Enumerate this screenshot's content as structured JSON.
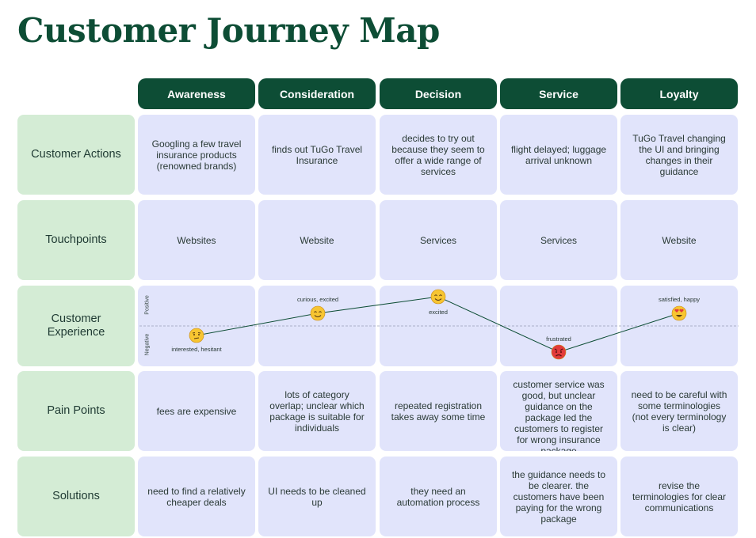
{
  "title": "Customer Journey Map",
  "stages": [
    "Awareness",
    "Consideration",
    "Decision",
    "Service",
    "Loyalty"
  ],
  "rows": {
    "actions": {
      "label": "Customer Actions",
      "cells": [
        "Googling a few travel insurance products (renowned brands)",
        "finds out TuGo Travel Insurance",
        "decides to try out because they seem to offer a wide range of services",
        "flight delayed; luggage arrival unknown",
        "TuGo Travel changing the UI and bringing changes in their guidance"
      ]
    },
    "touchpoints": {
      "label": "Touchpoints",
      "cells": [
        "Websites",
        "Website",
        "Services",
        "Services",
        "Website"
      ]
    },
    "experience": {
      "label": "Customer Experience",
      "positive_label": "Positive",
      "negative_label": "Negative",
      "points": [
        {
          "label": "interested, hesitant",
          "emotion": "hesitant",
          "icon": "thinking-face-icon"
        },
        {
          "label": "curious, excited",
          "emotion": "curious",
          "icon": "smiling-face-icon"
        },
        {
          "label": "excited",
          "emotion": "excited",
          "icon": "smiling-face-icon"
        },
        {
          "label": "frustrated",
          "emotion": "frustrated",
          "icon": "angry-face-icon"
        },
        {
          "label": "satisfied, happy",
          "emotion": "happy",
          "icon": "heart-eyes-face-icon"
        }
      ]
    },
    "pain_points": {
      "label": "Pain Points",
      "cells": [
        "fees are expensive",
        "lots of category overlap; unclear which package is suitable for individuals",
        "repeated registration takes away some time",
        "customer service was good, but unclear guidance on the package led the customers to register for wrong insurance package",
        "need to be careful with some terminologies (not every terminology is clear)"
      ]
    },
    "solutions": {
      "label": "Solutions",
      "cells": [
        "need to find a relatively cheaper deals",
        "UI needs to be cleaned up",
        "they need an automation process",
        "the guidance needs to be clearer. the customers have been paying for the wrong package",
        "revise the terminologies for clear communications"
      ]
    }
  },
  "colors": {
    "title": "#0d4d35",
    "stage_header_bg": "#0d4d35",
    "row_label_bg": "#d4ecd5",
    "cell_bg": "#e1e4fb",
    "journey_line": "#0d4d35",
    "emoji_yellow": "#f7c531",
    "emoji_red": "#e23b3b"
  }
}
